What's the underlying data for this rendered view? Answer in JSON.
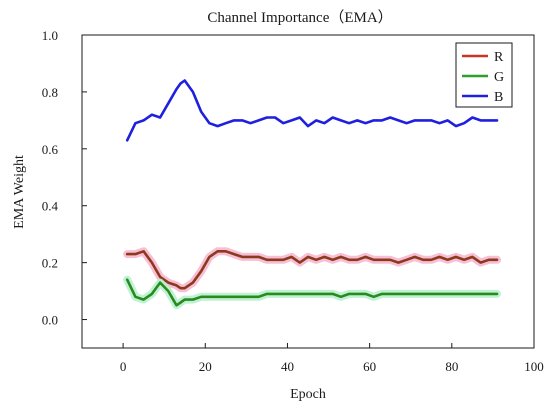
{
  "chart_data": {
    "type": "line",
    "title": "Channel Importance（EMA）",
    "xlabel": "Epoch",
    "ylabel": "EMA Weight",
    "xlim": [
      -10,
      100
    ],
    "ylim": [
      -0.1,
      1.0
    ],
    "xticks": [
      0,
      20,
      40,
      60,
      80,
      100
    ],
    "yticks": [
      0.0,
      0.2,
      0.4,
      0.6,
      0.8,
      1.0
    ],
    "xtick_labels": [
      "0",
      "20",
      "40",
      "60",
      "80",
      "100"
    ],
    "ytick_labels": [
      "0.0",
      "0.2",
      "0.4",
      "0.6",
      "0.8",
      "1.0"
    ],
    "grid": false,
    "legend_position": "top-right",
    "x": [
      1,
      3,
      5,
      7,
      9,
      11,
      13,
      14,
      15,
      17,
      19,
      21,
      23,
      25,
      27,
      29,
      31,
      33,
      35,
      37,
      39,
      41,
      43,
      45,
      47,
      49,
      51,
      53,
      55,
      57,
      59,
      61,
      63,
      65,
      67,
      69,
      71,
      73,
      75,
      77,
      79,
      81,
      83,
      85,
      87,
      89,
      91
    ],
    "series": [
      {
        "name": "R",
        "color": "#cc3322",
        "values": [
          0.23,
          0.23,
          0.24,
          0.2,
          0.15,
          0.13,
          0.12,
          0.11,
          0.11,
          0.13,
          0.17,
          0.22,
          0.24,
          0.24,
          0.23,
          0.22,
          0.22,
          0.22,
          0.21,
          0.21,
          0.21,
          0.22,
          0.2,
          0.22,
          0.21,
          0.22,
          0.21,
          0.22,
          0.21,
          0.21,
          0.22,
          0.21,
          0.21,
          0.21,
          0.2,
          0.21,
          0.22,
          0.21,
          0.21,
          0.22,
          0.21,
          0.22,
          0.21,
          0.22,
          0.2,
          0.21,
          0.21
        ]
      },
      {
        "name": "G",
        "color": "#2e9e2e",
        "values": [
          0.14,
          0.08,
          0.07,
          0.09,
          0.13,
          0.1,
          0.05,
          0.06,
          0.07,
          0.07,
          0.08,
          0.08,
          0.08,
          0.08,
          0.08,
          0.08,
          0.08,
          0.08,
          0.09,
          0.09,
          0.09,
          0.09,
          0.09,
          0.09,
          0.09,
          0.09,
          0.09,
          0.08,
          0.09,
          0.09,
          0.09,
          0.08,
          0.09,
          0.09,
          0.09,
          0.09,
          0.09,
          0.09,
          0.09,
          0.09,
          0.09,
          0.09,
          0.09,
          0.09,
          0.09,
          0.09,
          0.09
        ]
      },
      {
        "name": "B",
        "color": "#1f1fe0",
        "values": [
          0.63,
          0.69,
          0.7,
          0.72,
          0.71,
          0.76,
          0.81,
          0.83,
          0.84,
          0.8,
          0.73,
          0.69,
          0.68,
          0.69,
          0.7,
          0.7,
          0.69,
          0.7,
          0.71,
          0.71,
          0.69,
          0.7,
          0.71,
          0.68,
          0.7,
          0.69,
          0.71,
          0.7,
          0.69,
          0.7,
          0.69,
          0.7,
          0.7,
          0.71,
          0.7,
          0.69,
          0.7,
          0.7,
          0.7,
          0.69,
          0.7,
          0.68,
          0.69,
          0.71,
          0.7,
          0.7,
          0.7
        ]
      }
    ]
  }
}
